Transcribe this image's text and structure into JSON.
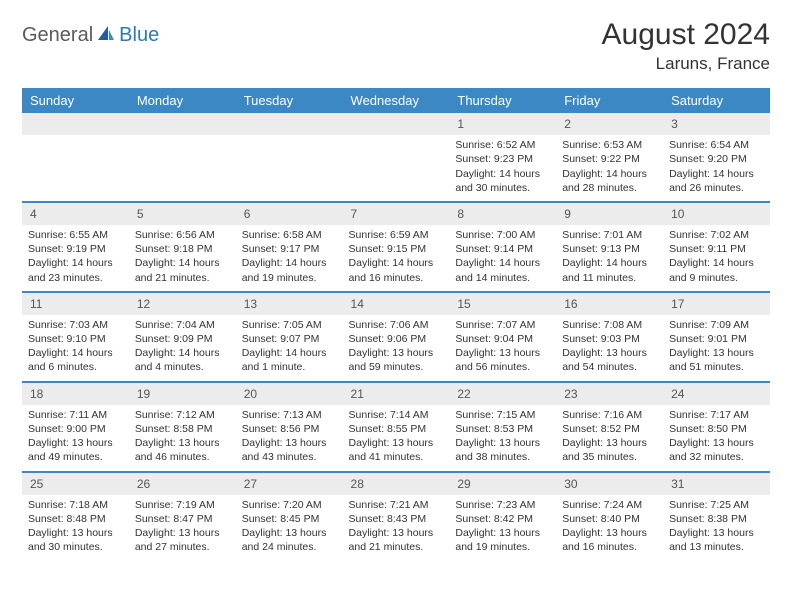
{
  "brand": {
    "general": "General",
    "blue": "Blue"
  },
  "title": "August 2024",
  "location": "Laruns, France",
  "colors": {
    "header_bg": "#3b88c4",
    "header_text": "#ffffff",
    "daynum_bg": "#ececec",
    "rule": "#3b88c4",
    "body_text": "#333333",
    "logo_gray": "#5a5a5a",
    "logo_blue": "#2a7ab8"
  },
  "day_headers": [
    "Sunday",
    "Monday",
    "Tuesday",
    "Wednesday",
    "Thursday",
    "Friday",
    "Saturday"
  ],
  "weeks": [
    [
      {
        "n": "",
        "lines": [
          "",
          "",
          "",
          ""
        ]
      },
      {
        "n": "",
        "lines": [
          "",
          "",
          "",
          ""
        ]
      },
      {
        "n": "",
        "lines": [
          "",
          "",
          "",
          ""
        ]
      },
      {
        "n": "",
        "lines": [
          "",
          "",
          "",
          ""
        ]
      },
      {
        "n": "1",
        "lines": [
          "Sunrise: 6:52 AM",
          "Sunset: 9:23 PM",
          "Daylight: 14 hours",
          "and 30 minutes."
        ]
      },
      {
        "n": "2",
        "lines": [
          "Sunrise: 6:53 AM",
          "Sunset: 9:22 PM",
          "Daylight: 14 hours",
          "and 28 minutes."
        ]
      },
      {
        "n": "3",
        "lines": [
          "Sunrise: 6:54 AM",
          "Sunset: 9:20 PM",
          "Daylight: 14 hours",
          "and 26 minutes."
        ]
      }
    ],
    [
      {
        "n": "4",
        "lines": [
          "Sunrise: 6:55 AM",
          "Sunset: 9:19 PM",
          "Daylight: 14 hours",
          "and 23 minutes."
        ]
      },
      {
        "n": "5",
        "lines": [
          "Sunrise: 6:56 AM",
          "Sunset: 9:18 PM",
          "Daylight: 14 hours",
          "and 21 minutes."
        ]
      },
      {
        "n": "6",
        "lines": [
          "Sunrise: 6:58 AM",
          "Sunset: 9:17 PM",
          "Daylight: 14 hours",
          "and 19 minutes."
        ]
      },
      {
        "n": "7",
        "lines": [
          "Sunrise: 6:59 AM",
          "Sunset: 9:15 PM",
          "Daylight: 14 hours",
          "and 16 minutes."
        ]
      },
      {
        "n": "8",
        "lines": [
          "Sunrise: 7:00 AM",
          "Sunset: 9:14 PM",
          "Daylight: 14 hours",
          "and 14 minutes."
        ]
      },
      {
        "n": "9",
        "lines": [
          "Sunrise: 7:01 AM",
          "Sunset: 9:13 PM",
          "Daylight: 14 hours",
          "and 11 minutes."
        ]
      },
      {
        "n": "10",
        "lines": [
          "Sunrise: 7:02 AM",
          "Sunset: 9:11 PM",
          "Daylight: 14 hours",
          "and 9 minutes."
        ]
      }
    ],
    [
      {
        "n": "11",
        "lines": [
          "Sunrise: 7:03 AM",
          "Sunset: 9:10 PM",
          "Daylight: 14 hours",
          "and 6 minutes."
        ]
      },
      {
        "n": "12",
        "lines": [
          "Sunrise: 7:04 AM",
          "Sunset: 9:09 PM",
          "Daylight: 14 hours",
          "and 4 minutes."
        ]
      },
      {
        "n": "13",
        "lines": [
          "Sunrise: 7:05 AM",
          "Sunset: 9:07 PM",
          "Daylight: 14 hours",
          "and 1 minute."
        ]
      },
      {
        "n": "14",
        "lines": [
          "Sunrise: 7:06 AM",
          "Sunset: 9:06 PM",
          "Daylight: 13 hours",
          "and 59 minutes."
        ]
      },
      {
        "n": "15",
        "lines": [
          "Sunrise: 7:07 AM",
          "Sunset: 9:04 PM",
          "Daylight: 13 hours",
          "and 56 minutes."
        ]
      },
      {
        "n": "16",
        "lines": [
          "Sunrise: 7:08 AM",
          "Sunset: 9:03 PM",
          "Daylight: 13 hours",
          "and 54 minutes."
        ]
      },
      {
        "n": "17",
        "lines": [
          "Sunrise: 7:09 AM",
          "Sunset: 9:01 PM",
          "Daylight: 13 hours",
          "and 51 minutes."
        ]
      }
    ],
    [
      {
        "n": "18",
        "lines": [
          "Sunrise: 7:11 AM",
          "Sunset: 9:00 PM",
          "Daylight: 13 hours",
          "and 49 minutes."
        ]
      },
      {
        "n": "19",
        "lines": [
          "Sunrise: 7:12 AM",
          "Sunset: 8:58 PM",
          "Daylight: 13 hours",
          "and 46 minutes."
        ]
      },
      {
        "n": "20",
        "lines": [
          "Sunrise: 7:13 AM",
          "Sunset: 8:56 PM",
          "Daylight: 13 hours",
          "and 43 minutes."
        ]
      },
      {
        "n": "21",
        "lines": [
          "Sunrise: 7:14 AM",
          "Sunset: 8:55 PM",
          "Daylight: 13 hours",
          "and 41 minutes."
        ]
      },
      {
        "n": "22",
        "lines": [
          "Sunrise: 7:15 AM",
          "Sunset: 8:53 PM",
          "Daylight: 13 hours",
          "and 38 minutes."
        ]
      },
      {
        "n": "23",
        "lines": [
          "Sunrise: 7:16 AM",
          "Sunset: 8:52 PM",
          "Daylight: 13 hours",
          "and 35 minutes."
        ]
      },
      {
        "n": "24",
        "lines": [
          "Sunrise: 7:17 AM",
          "Sunset: 8:50 PM",
          "Daylight: 13 hours",
          "and 32 minutes."
        ]
      }
    ],
    [
      {
        "n": "25",
        "lines": [
          "Sunrise: 7:18 AM",
          "Sunset: 8:48 PM",
          "Daylight: 13 hours",
          "and 30 minutes."
        ]
      },
      {
        "n": "26",
        "lines": [
          "Sunrise: 7:19 AM",
          "Sunset: 8:47 PM",
          "Daylight: 13 hours",
          "and 27 minutes."
        ]
      },
      {
        "n": "27",
        "lines": [
          "Sunrise: 7:20 AM",
          "Sunset: 8:45 PM",
          "Daylight: 13 hours",
          "and 24 minutes."
        ]
      },
      {
        "n": "28",
        "lines": [
          "Sunrise: 7:21 AM",
          "Sunset: 8:43 PM",
          "Daylight: 13 hours",
          "and 21 minutes."
        ]
      },
      {
        "n": "29",
        "lines": [
          "Sunrise: 7:23 AM",
          "Sunset: 8:42 PM",
          "Daylight: 13 hours",
          "and 19 minutes."
        ]
      },
      {
        "n": "30",
        "lines": [
          "Sunrise: 7:24 AM",
          "Sunset: 8:40 PM",
          "Daylight: 13 hours",
          "and 16 minutes."
        ]
      },
      {
        "n": "31",
        "lines": [
          "Sunrise: 7:25 AM",
          "Sunset: 8:38 PM",
          "Daylight: 13 hours",
          "and 13 minutes."
        ]
      }
    ]
  ]
}
